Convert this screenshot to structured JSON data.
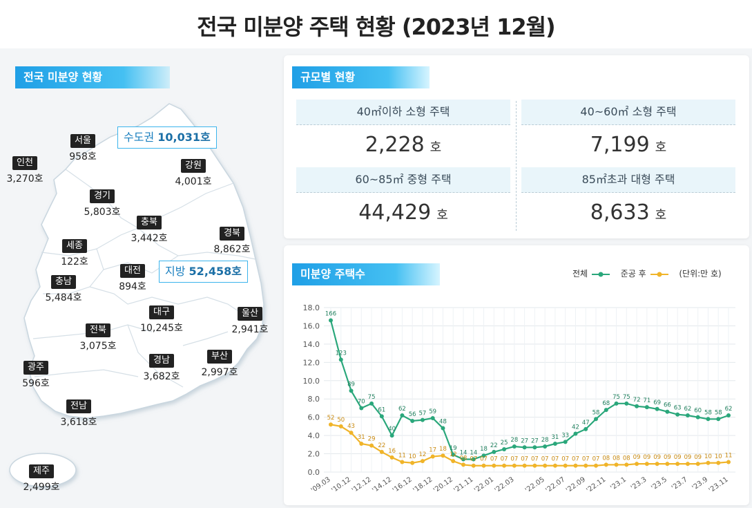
{
  "title": "전국 미분양 주택 현황 (2023년 12월)",
  "map": {
    "tag": "전국 미분양 현황",
    "capital": {
      "label": "수도권",
      "value": "10,031호"
    },
    "local": {
      "label": "지방",
      "value": "52,458호"
    },
    "regions": [
      {
        "name": "서울",
        "value": "958호"
      },
      {
        "name": "인천",
        "value": "3,270호"
      },
      {
        "name": "경기",
        "value": "5,803호"
      },
      {
        "name": "강원",
        "value": "4,001호"
      },
      {
        "name": "충북",
        "value": "3,442호"
      },
      {
        "name": "경북",
        "value": "8,862호"
      },
      {
        "name": "세종",
        "value": "122호"
      },
      {
        "name": "대전",
        "value": "894호"
      },
      {
        "name": "충남",
        "value": "5,484호"
      },
      {
        "name": "대구",
        "value": "10,245호"
      },
      {
        "name": "울산",
        "value": "2,941호"
      },
      {
        "name": "전북",
        "value": "3,075호"
      },
      {
        "name": "광주",
        "value": "596호"
      },
      {
        "name": "경남",
        "value": "3,682호"
      },
      {
        "name": "부산",
        "value": "2,997호"
      },
      {
        "name": "전남",
        "value": "3,618호"
      },
      {
        "name": "제주",
        "value": "2,499호"
      }
    ]
  },
  "size_panel": {
    "tag": "규모별 현황",
    "cells": [
      {
        "label": "40㎡이하 소형 주택",
        "value": "2,228",
        "unit": "호"
      },
      {
        "label": "40~60㎡ 소형 주택",
        "value": "7,199",
        "unit": "호"
      },
      {
        "label": "60~85㎡ 중형 주택",
        "value": "44,429",
        "unit": "호"
      },
      {
        "label": "85㎡초과 대형 주택",
        "value": "8,633",
        "unit": "호"
      }
    ]
  },
  "chart_panel": {
    "tag": "미분양 주택수",
    "legend_total": "전체",
    "legend_after": "준공 후",
    "unit_note": "(단위:만 호)"
  },
  "chart_data": {
    "type": "line",
    "title": "미분양 주택수",
    "ylim": [
      0,
      18
    ],
    "yticks": [
      "0.0",
      "2.0",
      "4.0",
      "6.0",
      "8.0",
      "10.0",
      "12.0",
      "14.0",
      "16.0",
      "18.0"
    ],
    "xticks": [
      "'09.03",
      "'10.12",
      "'12.12",
      "'14.12",
      "'16.12",
      "'18.12",
      "'20.12",
      "'21.11",
      "'22.01",
      "'22.03",
      "'22.05",
      "'22.07",
      "'22.09",
      "'22.11",
      "'23.1",
      "'23.3",
      "'23.5",
      "'23.7",
      "'23.9",
      "'23.11"
    ],
    "grid": true,
    "legend": "top-right",
    "colors": {
      "total": "#2aa77b",
      "after": "#f0b429"
    },
    "series": [
      {
        "name": "전체",
        "values": [
          16.6,
          12.3,
          8.9,
          7.0,
          7.5,
          6.1,
          4.0,
          6.2,
          5.6,
          5.7,
          5.9,
          4.8,
          1.9,
          1.4,
          1.4,
          1.8,
          2.2,
          2.5,
          2.8,
          2.7,
          2.7,
          2.8,
          3.1,
          3.3,
          4.2,
          4.7,
          5.8,
          6.8,
          7.5,
          7.5,
          7.2,
          7.1,
          6.9,
          6.6,
          6.3,
          6.2,
          6.0,
          5.8,
          5.8,
          6.2
        ],
        "labels": [
          "166",
          "123",
          "89",
          "70",
          "75",
          "61",
          "40",
          "62",
          "56",
          "57",
          "59",
          "48",
          "19",
          "14",
          "14",
          "18",
          "22",
          "25",
          "28",
          "27",
          "27",
          "28",
          "31",
          "33",
          "42",
          "47",
          "58",
          "68",
          "75",
          "75",
          "72",
          "71",
          "69",
          "66",
          "63",
          "62",
          "60",
          "58",
          "58",
          "62"
        ]
      },
      {
        "name": "준공 후",
        "values": [
          5.2,
          5.0,
          4.3,
          3.1,
          2.9,
          2.2,
          1.6,
          1.1,
          1.0,
          1.2,
          1.7,
          1.8,
          1.2,
          0.8,
          0.7,
          0.7,
          0.7,
          0.7,
          0.7,
          0.7,
          0.7,
          0.7,
          0.7,
          0.7,
          0.7,
          0.7,
          0.7,
          0.8,
          0.8,
          0.8,
          0.9,
          0.9,
          0.9,
          0.9,
          0.9,
          0.9,
          0.9,
          1.0,
          1.0,
          1.1
        ],
        "labels": [
          "52",
          "50",
          "43",
          "31",
          "29",
          "22",
          "16",
          "11",
          "10",
          "12",
          "17",
          "18",
          "12",
          "08",
          "07",
          "07",
          "07",
          "07",
          "07",
          "07",
          "07",
          "07",
          "07",
          "07",
          "07",
          "07",
          "07",
          "08",
          "08",
          "08",
          "09",
          "09",
          "09",
          "09",
          "09",
          "09",
          "09",
          "10",
          "10",
          "11"
        ]
      }
    ]
  }
}
